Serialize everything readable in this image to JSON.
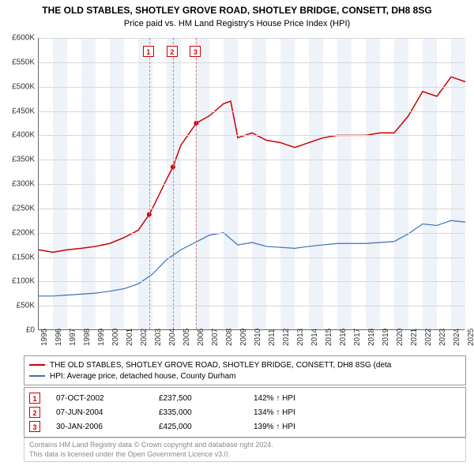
{
  "title": "THE OLD STABLES, SHOTLEY GROVE ROAD, SHOTLEY BRIDGE, CONSETT, DH8 8SG",
  "subtitle": "Price paid vs. HM Land Registry's House Price Index (HPI)",
  "chart": {
    "type": "line",
    "ylim": [
      0,
      600000
    ],
    "ytick_step": 50000,
    "yticks": [
      "£0",
      "£50K",
      "£100K",
      "£150K",
      "£200K",
      "£250K",
      "£300K",
      "£350K",
      "£400K",
      "£450K",
      "£500K",
      "£550K",
      "£600K"
    ],
    "x_years": [
      1995,
      1996,
      1997,
      1998,
      1999,
      2000,
      2001,
      2002,
      2003,
      2004,
      2005,
      2006,
      2007,
      2008,
      2009,
      2010,
      2011,
      2012,
      2013,
      2014,
      2015,
      2016,
      2017,
      2018,
      2019,
      2020,
      2021,
      2022,
      2023,
      2024,
      2025
    ],
    "background_color": "#ffffff",
    "grid_color": "#d8d8d8",
    "band_color": "#eef2f9",
    "series": [
      {
        "name": "property",
        "label": "THE OLD STABLES, SHOTLEY GROVE ROAD, SHOTLEY BRIDGE, CONSETT, DH8 8SG (deta",
        "color": "#cc0000",
        "line_width": 1.5,
        "data": [
          [
            1995,
            165000
          ],
          [
            1996,
            160000
          ],
          [
            1997,
            165000
          ],
          [
            1998,
            168000
          ],
          [
            1999,
            172000
          ],
          [
            2000,
            178000
          ],
          [
            2001,
            190000
          ],
          [
            2002,
            205000
          ],
          [
            2002.77,
            237500
          ],
          [
            2003,
            250000
          ],
          [
            2004,
            310000
          ],
          [
            2004.44,
            335000
          ],
          [
            2005,
            380000
          ],
          [
            2006.08,
            425000
          ],
          [
            2007,
            440000
          ],
          [
            2008,
            465000
          ],
          [
            2008.5,
            470000
          ],
          [
            2009,
            395000
          ],
          [
            2010,
            405000
          ],
          [
            2011,
            390000
          ],
          [
            2012,
            385000
          ],
          [
            2013,
            375000
          ],
          [
            2014,
            385000
          ],
          [
            2015,
            395000
          ],
          [
            2016,
            400000
          ],
          [
            2017,
            400000
          ],
          [
            2018,
            400000
          ],
          [
            2019,
            405000
          ],
          [
            2020,
            405000
          ],
          [
            2021,
            440000
          ],
          [
            2022,
            490000
          ],
          [
            2023,
            480000
          ],
          [
            2024,
            520000
          ],
          [
            2025,
            510000
          ]
        ]
      },
      {
        "name": "hpi",
        "label": "HPI: Average price, detached house, County Durham",
        "color": "#3a6fb7",
        "line_width": 1.2,
        "data": [
          [
            1995,
            70000
          ],
          [
            1996,
            70000
          ],
          [
            1997,
            72000
          ],
          [
            1998,
            74000
          ],
          [
            1999,
            76000
          ],
          [
            2000,
            80000
          ],
          [
            2001,
            85000
          ],
          [
            2002,
            95000
          ],
          [
            2003,
            115000
          ],
          [
            2004,
            145000
          ],
          [
            2005,
            165000
          ],
          [
            2006,
            180000
          ],
          [
            2007,
            195000
          ],
          [
            2008,
            200000
          ],
          [
            2009,
            175000
          ],
          [
            2010,
            180000
          ],
          [
            2011,
            172000
          ],
          [
            2012,
            170000
          ],
          [
            2013,
            168000
          ],
          [
            2014,
            172000
          ],
          [
            2015,
            175000
          ],
          [
            2016,
            178000
          ],
          [
            2017,
            178000
          ],
          [
            2018,
            178000
          ],
          [
            2019,
            180000
          ],
          [
            2020,
            182000
          ],
          [
            2021,
            198000
          ],
          [
            2022,
            218000
          ],
          [
            2023,
            215000
          ],
          [
            2024,
            225000
          ],
          [
            2025,
            222000
          ]
        ]
      }
    ],
    "sales": [
      {
        "idx": "1",
        "year": 2002.77,
        "date": "07-OCT-2002",
        "price_val": 237500,
        "price": "£237,500",
        "pct": "142% ↑ HPI"
      },
      {
        "idx": "2",
        "year": 2004.44,
        "date": "07-JUN-2004",
        "price_val": 335000,
        "price": "£335,000",
        "pct": "134% ↑ HPI"
      },
      {
        "idx": "3",
        "year": 2006.08,
        "date": "30-JAN-2006",
        "price_val": 425000,
        "price": "£425,000",
        "pct": "139% ↑ HPI"
      }
    ]
  },
  "footnote_line1": "Contains HM Land Registry data © Crown copyright and database right 2024.",
  "footnote_line2": "This data is licensed under the Open Government Licence v3.0."
}
